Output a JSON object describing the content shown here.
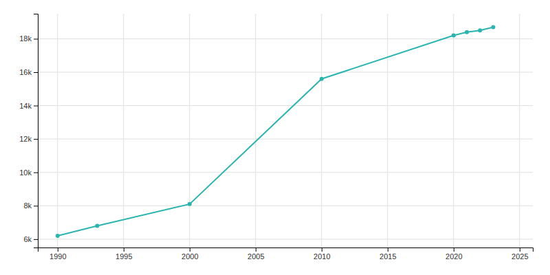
{
  "chart_data": {
    "type": "line",
    "x": [
      1990,
      1993,
      2000,
      2010,
      2020,
      2021,
      2022,
      2023
    ],
    "values": [
      6200,
      6800,
      8100,
      15600,
      18200,
      18400,
      18500,
      18700
    ],
    "color": "#2ab5b0",
    "marker": "circle",
    "xlim": [
      1988.5,
      2026
    ],
    "ylim": [
      5500,
      19500
    ],
    "xticks": [
      1990,
      1995,
      2000,
      2005,
      2010,
      2015,
      2020,
      2025
    ],
    "yticks": [
      {
        "value": 6000,
        "label": "6k"
      },
      {
        "value": 8000,
        "label": "8k"
      },
      {
        "value": 10000,
        "label": "10k"
      },
      {
        "value": 12000,
        "label": "12k"
      },
      {
        "value": 14000,
        "label": "14k"
      },
      {
        "value": 16000,
        "label": "16k"
      },
      {
        "value": 18000,
        "label": "18k"
      }
    ],
    "grid": true
  }
}
